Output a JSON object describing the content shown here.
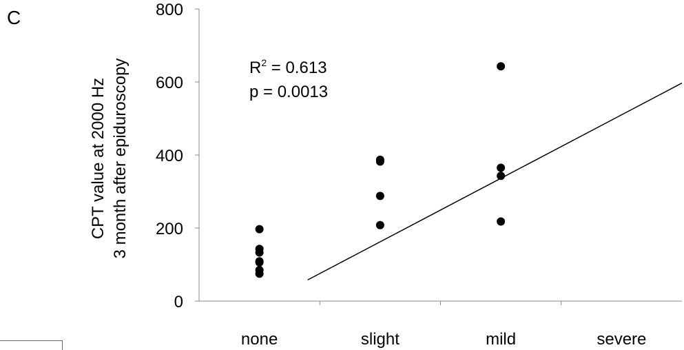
{
  "panel_label": "C",
  "chart_data": {
    "type": "scatter",
    "categories": [
      "none",
      "slight",
      "mild",
      "severe"
    ],
    "ylabel_lines": [
      "CPT value at 2000 Hz",
      "3 month after epiduroscopy"
    ],
    "ylim": [
      0,
      800
    ],
    "yticks": [
      0,
      200,
      400,
      600,
      800
    ],
    "grid": false,
    "points": [
      {
        "category": "none",
        "y": 197
      },
      {
        "category": "none",
        "y": 143
      },
      {
        "category": "none",
        "y": 133
      },
      {
        "category": "none",
        "y": 109
      },
      {
        "category": "none",
        "y": 106
      },
      {
        "category": "none",
        "y": 85
      },
      {
        "category": "none",
        "y": 75
      },
      {
        "category": "slight",
        "y": 387
      },
      {
        "category": "slight",
        "y": 382
      },
      {
        "category": "slight",
        "y": 288
      },
      {
        "category": "slight",
        "y": 208
      },
      {
        "category": "mild",
        "y": 643
      },
      {
        "category": "mild",
        "y": 365
      },
      {
        "category": "mild",
        "y": 343
      },
      {
        "category": "mild",
        "y": 218
      }
    ],
    "trendline": {
      "from": [
        0.4,
        58
      ],
      "to": [
        3.5,
        597
      ]
    },
    "annotations": {
      "r2_prefix": "R",
      "r2_sup": "2",
      "r2_value": " = 0.613",
      "p_text": "p = 0.0013"
    }
  }
}
